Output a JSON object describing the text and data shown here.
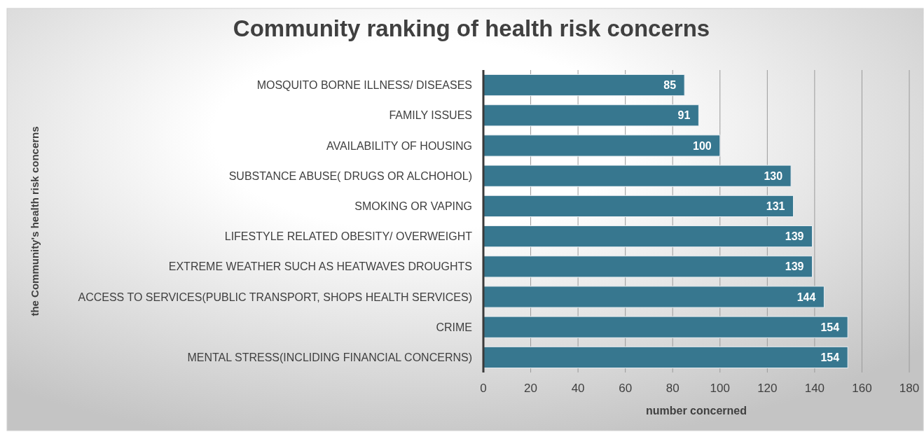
{
  "chart_data": {
    "type": "bar",
    "orientation": "horizontal",
    "title": "Community ranking of health risk concerns",
    "xlabel": "number concerned",
    "ylabel": "the Community's health risk concerns",
    "categories": [
      "MOSQUITO BORNE ILLNESS/ DISEASES",
      "FAMILY ISSUES",
      "AVAILABILITY OF HOUSING",
      "SUBSTANCE ABUSE( DRUGS OR ALCHOHOL)",
      "SMOKING OR VAPING",
      "LIFESTYLE RELATED OBESITY/ OVERWEIGHT",
      "EXTREME WEATHER SUCH AS HEATWAVES DROUGHTS",
      "ACCESS TO SERVICES(PUBLIC TRANSPORT, SHOPS HEALTH SERVICES)",
      "CRIME",
      "MENTAL STRESS(INCLIDING FINANCIAL CONCERNS)"
    ],
    "values": [
      85,
      91,
      100,
      130,
      131,
      139,
      139,
      144,
      154,
      154
    ],
    "color": "#37778f",
    "xlim": [
      0,
      180
    ],
    "xticks": [
      0,
      20,
      40,
      60,
      80,
      100,
      120,
      140,
      160,
      180
    ],
    "grid": "x",
    "data_labels": true
  }
}
